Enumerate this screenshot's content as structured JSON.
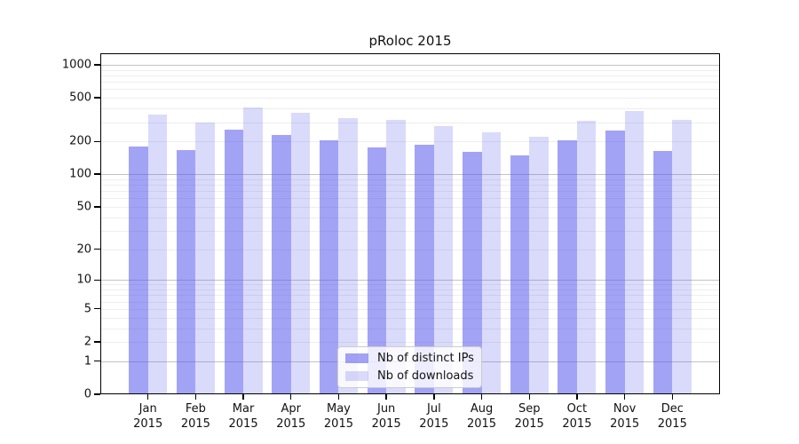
{
  "title": "pRoloc 2015",
  "legend": {
    "items": [
      {
        "label": "Nb of distinct IPs",
        "color_key": "bar_ips"
      },
      {
        "label": "Nb of downloads",
        "color_key": "bar_downloads"
      }
    ]
  },
  "colors": {
    "bar_ips": "rgba(88,88,238,0.55)",
    "bar_downloads": "rgba(88,88,238,0.22)",
    "grid_major": "#c3c3c3",
    "grid_minor": "#eeeeee",
    "axis": "#000000",
    "text": "#111111"
  },
  "chart_data": {
    "type": "bar",
    "title": "pRoloc 2015",
    "categories": [
      "Jan",
      "Feb",
      "Mar",
      "Apr",
      "May",
      "Jun",
      "Jul",
      "Aug",
      "Sep",
      "Oct",
      "Nov",
      "Dec"
    ],
    "year_label": "2015",
    "series": [
      {
        "name": "Nb of distinct IPs",
        "values": [
          180,
          168,
          255,
          229,
          203,
          176,
          187,
          161,
          150,
          203,
          251,
          163
        ]
      },
      {
        "name": "Nb of downloads",
        "values": [
          350,
          295,
          410,
          368,
          325,
          315,
          277,
          244,
          220,
          308,
          378,
          314
        ]
      }
    ],
    "yscale": "log(x+1)",
    "yticks": [
      0,
      1,
      2,
      5,
      10,
      20,
      50,
      100,
      200,
      500,
      1000
    ],
    "ytick_labels": [
      "0",
      "1",
      "2",
      "5",
      "10",
      "20",
      "50",
      "100",
      "200",
      "500",
      "1000"
    ],
    "ylim": [
      0,
      1275
    ],
    "xlabel": "",
    "ylabel": "",
    "grid": true,
    "legend_position": "lower center"
  }
}
